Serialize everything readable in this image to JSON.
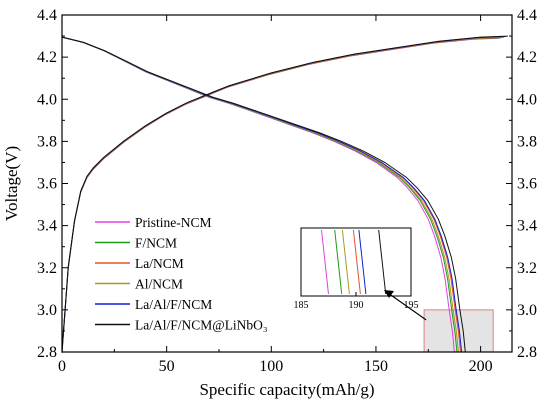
{
  "chart_data": {
    "type": "line",
    "xlabel": "Specific capacity(mAh/g)",
    "ylabel": "Voltage(V)",
    "xlim": [
      0,
      215
    ],
    "ylim": [
      2.8,
      4.4
    ],
    "x_ticks": [
      0,
      50,
      100,
      150,
      200
    ],
    "x_tick_labels": [
      "0",
      "50",
      "100",
      "150",
      "200"
    ],
    "y_ticks": [
      2.8,
      3.0,
      3.2,
      3.4,
      3.6,
      3.8,
      4.0,
      4.2,
      4.4
    ],
    "y_tick_labels": [
      "2.8",
      "3.0",
      "3.2",
      "3.4",
      "3.6",
      "3.8",
      "4.0",
      "4.2",
      "4.4"
    ],
    "right_axis_mirrored": true,
    "grid": false,
    "legend_position": "lower-left",
    "series": [
      {
        "name": "Pristine-NCM",
        "color": "#e040e0",
        "end_capacity": 187.5,
        "charge_end": 209
      },
      {
        "name": "F/NCM",
        "color": "#1a9a1a",
        "end_capacity": 188.7,
        "charge_end": 210
      },
      {
        "name": "La/NCM",
        "color": "#e8502a",
        "end_capacity": 190.4,
        "charge_end": 211
      },
      {
        "name": "Al/NCM",
        "color": "#a89a20",
        "end_capacity": 189.4,
        "charge_end": 211
      },
      {
        "name": "La/Al/F/NCM",
        "color": "#1020d0",
        "end_capacity": 190.9,
        "charge_end": 212
      },
      {
        "name": "La/Al/F/NCM@LiNbO₃",
        "color": "#111111",
        "end_capacity": 192.7,
        "charge_end": 213
      }
    ],
    "charge_curve": {
      "x": [
        0,
        3,
        6,
        9,
        12,
        15,
        20,
        30,
        40,
        50,
        60,
        70,
        80,
        100,
        120,
        140,
        160,
        180,
        200,
        213
      ],
      "y": [
        2.8,
        3.2,
        3.42,
        3.56,
        3.63,
        3.67,
        3.72,
        3.8,
        3.87,
        3.93,
        3.98,
        4.02,
        4.06,
        4.12,
        4.17,
        4.21,
        4.24,
        4.27,
        4.29,
        4.295
      ]
    },
    "discharge_curve": {
      "x": [
        0,
        10,
        20,
        30,
        40,
        50,
        60,
        70,
        80,
        90,
        100,
        110,
        120,
        130,
        140,
        150,
        160,
        165,
        170,
        175,
        178,
        181,
        183,
        185,
        186.5,
        187.5
      ],
      "y": [
        4.295,
        4.27,
        4.23,
        4.18,
        4.13,
        4.09,
        4.05,
        4.01,
        3.98,
        3.945,
        3.91,
        3.875,
        3.84,
        3.8,
        3.755,
        3.7,
        3.63,
        3.58,
        3.52,
        3.43,
        3.35,
        3.25,
        3.15,
        3.0,
        2.9,
        2.8
      ]
    },
    "zoom_box": {
      "x": [
        173,
        206
      ],
      "y": [
        2.8,
        3.0
      ]
    },
    "inset": {
      "xlim": [
        185,
        195
      ],
      "x_ticks": [
        185,
        190,
        195
      ],
      "x_tick_labels": [
        "185",
        "190",
        "195"
      ]
    }
  }
}
